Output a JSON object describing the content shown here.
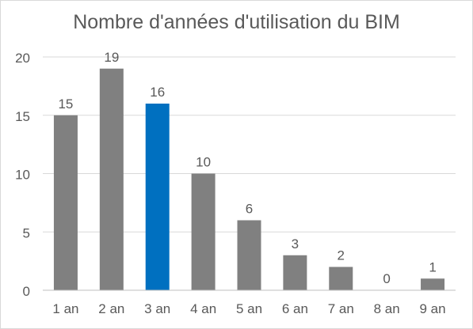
{
  "chart_data": {
    "type": "bar",
    "title": "Nombre d'années d'utilisation du BIM",
    "xlabel": "",
    "ylabel": "",
    "categories": [
      "1 an",
      "2 an",
      "3 an",
      "4 an",
      "5 an",
      "6 an",
      "7 an",
      "8 an",
      "9 an"
    ],
    "values": [
      15,
      19,
      16,
      10,
      6,
      3,
      2,
      0,
      1
    ],
    "ylim": [
      0,
      20
    ],
    "yticks": [
      0,
      5,
      10,
      15,
      20
    ],
    "grid": true,
    "legend": "none",
    "data_labels": true,
    "colors": {
      "bar": "#808080",
      "highlight": "#0070c0",
      "grid": "#d9d9d9",
      "text": "#595959",
      "axis": "#bfbfbf"
    },
    "highlight_category": "3 an"
  }
}
